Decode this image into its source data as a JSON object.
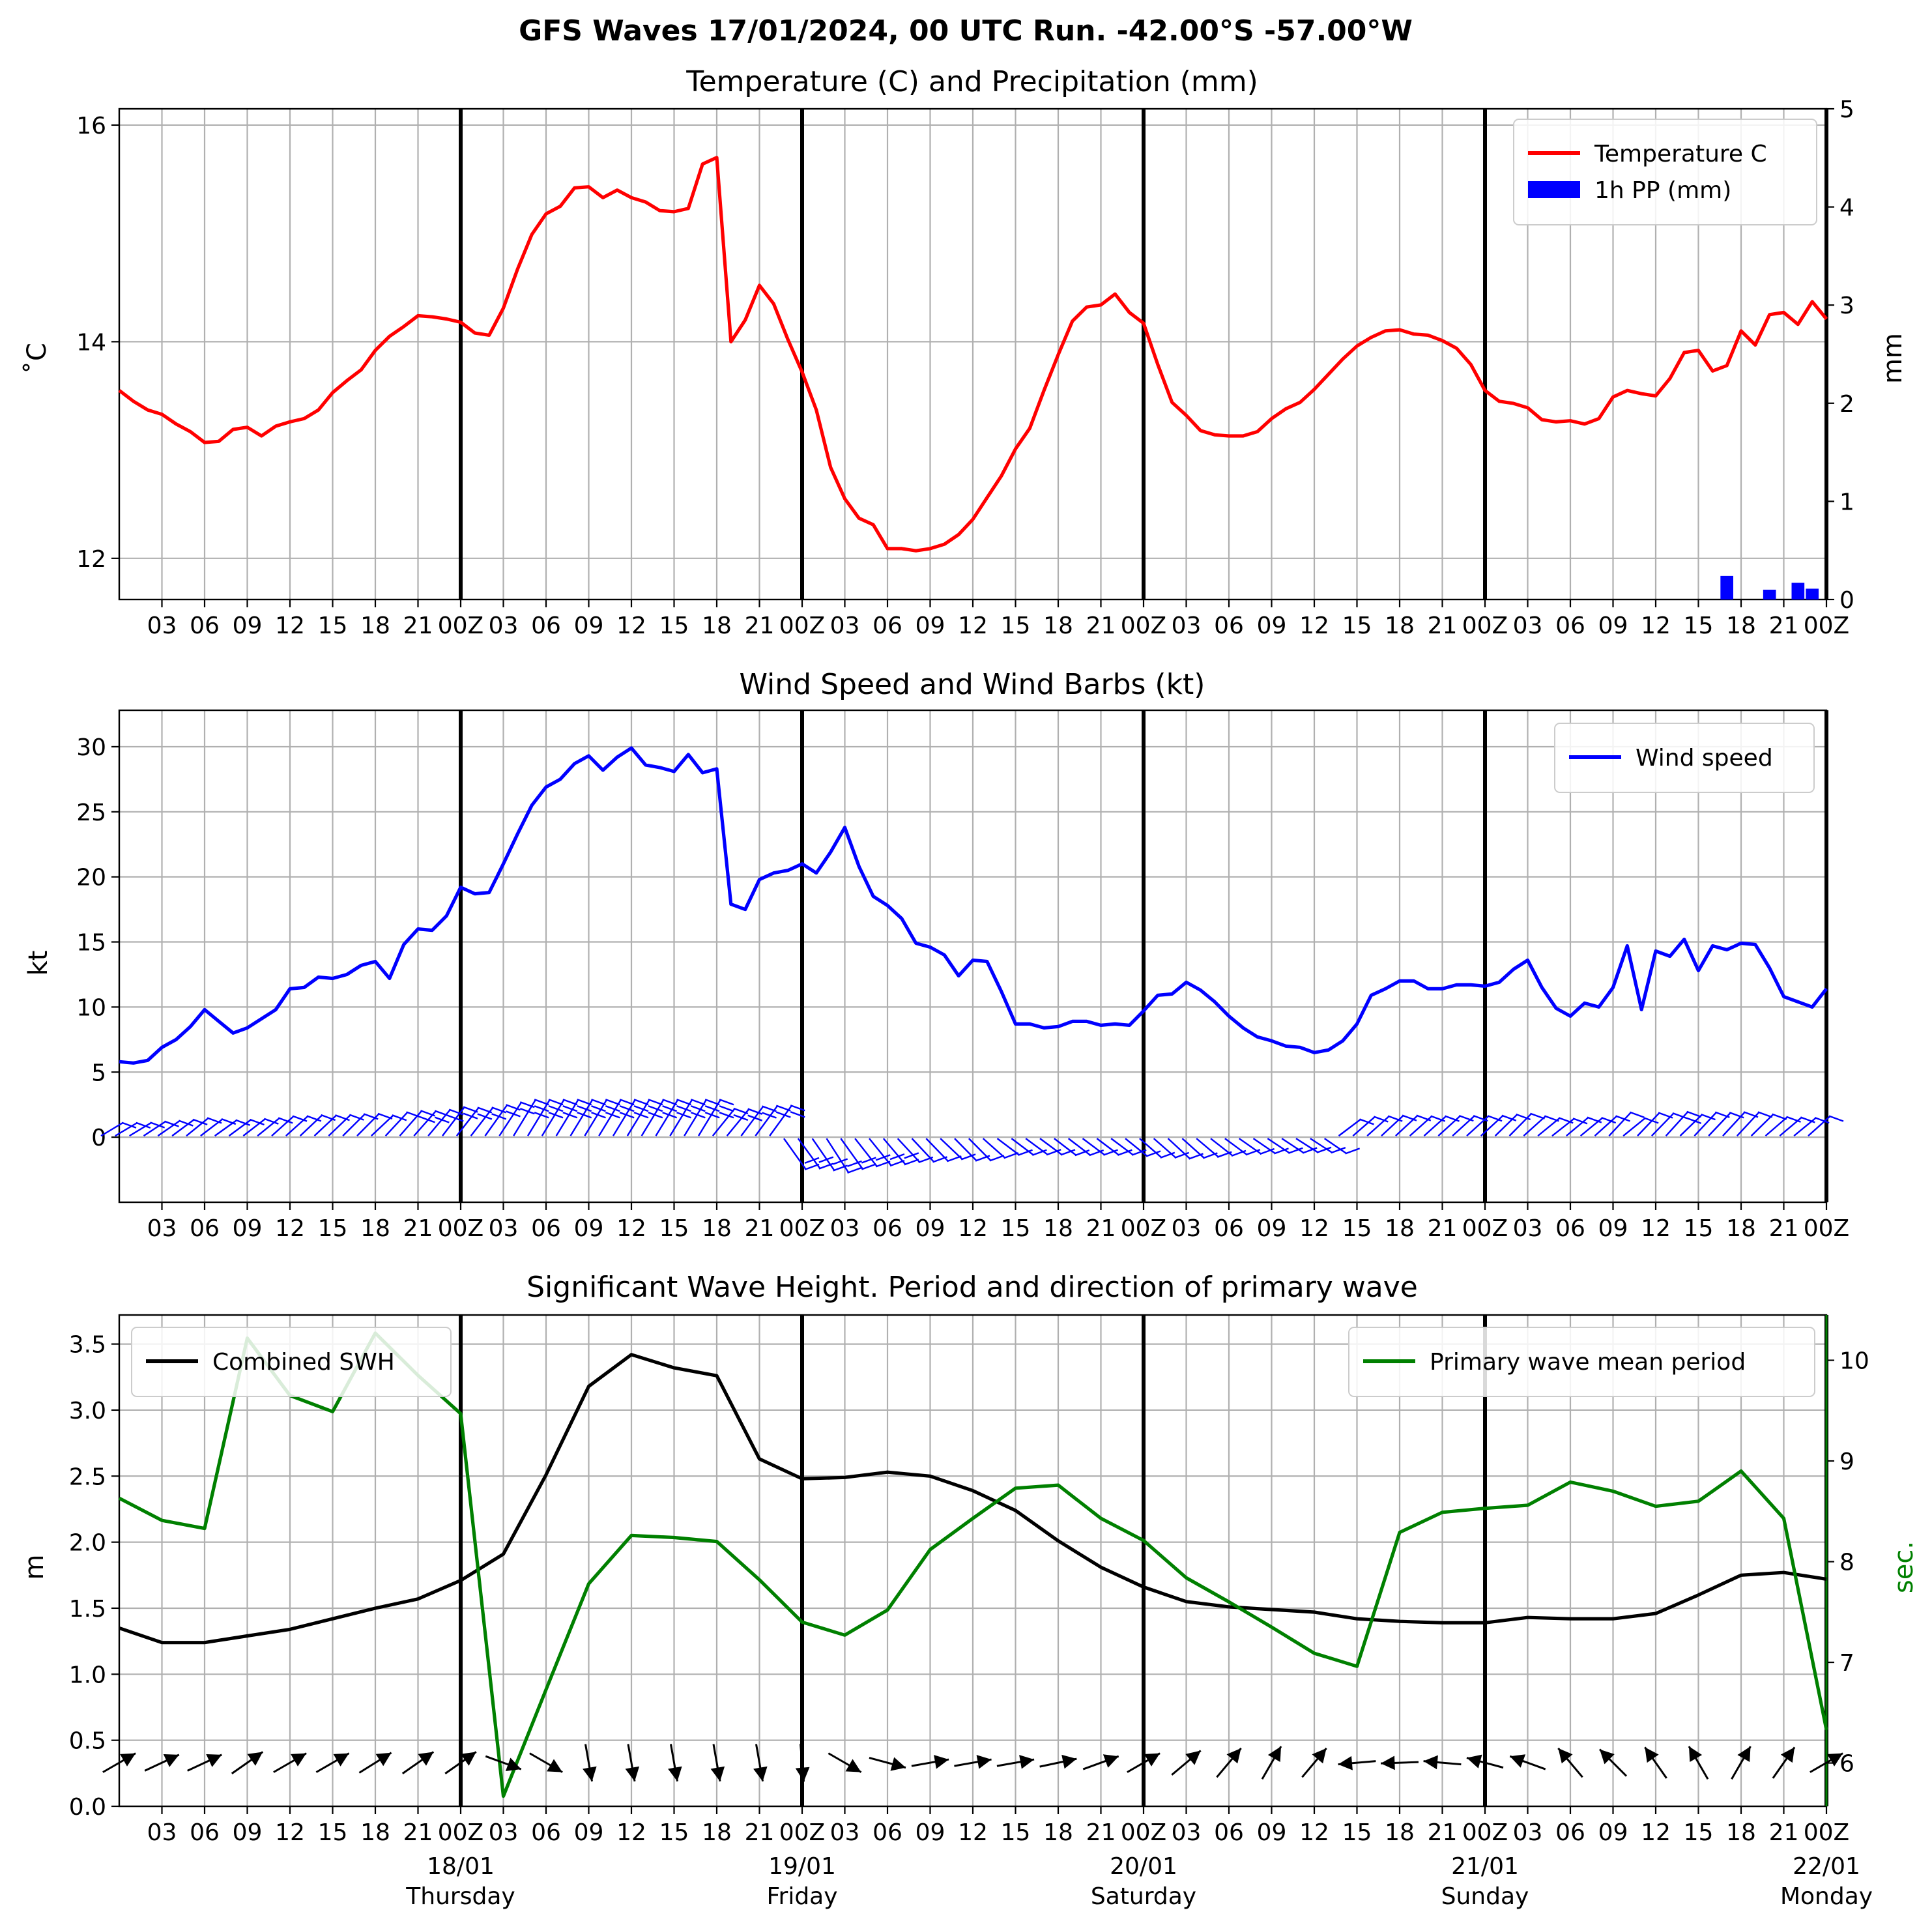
{
  "figure": {
    "title": "GFS Waves 17/01/2024, 00 UTC Run. -42.00°S -57.00°W"
  },
  "colors": {
    "temperature": "#ff0000",
    "precip": "#0000ff",
    "wind": "#0000ff",
    "swh": "#000000",
    "period": "#008000",
    "grid": "#b0b0b0"
  },
  "x_ticks": {
    "labels": [
      "03",
      "06",
      "09",
      "12",
      "15",
      "18",
      "21",
      "00Z",
      "03",
      "06",
      "09",
      "12",
      "15",
      "18",
      "21",
      "00Z",
      "03",
      "06",
      "09",
      "12",
      "15",
      "18",
      "21",
      "00Z",
      "03",
      "06",
      "09",
      "12",
      "15",
      "18",
      "21",
      "00Z",
      "03",
      "06",
      "09",
      "12",
      "15",
      "18",
      "21",
      "00Z"
    ],
    "hours": [
      3,
      6,
      9,
      12,
      15,
      18,
      21,
      24,
      27,
      30,
      33,
      36,
      39,
      42,
      45,
      48,
      51,
      54,
      57,
      60,
      63,
      66,
      69,
      72,
      75,
      78,
      81,
      84,
      87,
      90,
      93,
      96,
      99,
      102,
      105,
      108,
      111,
      114,
      117,
      120
    ],
    "day_hours": [
      24,
      48,
      72,
      96,
      120
    ],
    "day_dates": [
      "18/01",
      "19/01",
      "20/01",
      "21/01",
      "22/01"
    ],
    "day_names": [
      "Thursday",
      "Friday",
      "Saturday",
      "Sunday",
      "Monday"
    ]
  },
  "chart_data": [
    {
      "type": "line",
      "title": "Temperature (C) and Precipitation (mm)",
      "ylabel": "$^\\circ$C",
      "ylabel_display": "˚C",
      "y2label": "mm",
      "ylim": [
        11.62,
        16.15
      ],
      "y2lim": [
        0,
        5
      ],
      "yticks": [
        12,
        14,
        16
      ],
      "y2ticks": [
        0,
        1,
        2,
        3,
        4,
        5
      ],
      "xlim": [
        0,
        120
      ],
      "legend": "top-right",
      "legend_labels": [
        "Temperature C",
        "1h PP (mm)"
      ],
      "series": [
        {
          "name": "Temperature C",
          "x": [
            0,
            1,
            2,
            3,
            4,
            5,
            6,
            7,
            8,
            9,
            10,
            11,
            12,
            13,
            14,
            15,
            16,
            17,
            18,
            19,
            20,
            21,
            22,
            23,
            24,
            25,
            26,
            27,
            28,
            29,
            30,
            31,
            32,
            33,
            34,
            35,
            36,
            37,
            38,
            39,
            40,
            41,
            42,
            43,
            44,
            45,
            46,
            47,
            48,
            49,
            50,
            51,
            52,
            53,
            54,
            55,
            56,
            57,
            58,
            59,
            60,
            61,
            62,
            63,
            64,
            65,
            66,
            67,
            68,
            69,
            70,
            71,
            72,
            73,
            74,
            75,
            76,
            77,
            78,
            79,
            80,
            81,
            82,
            83,
            84,
            85,
            86,
            87,
            88,
            89,
            90,
            91,
            92,
            93,
            94,
            95,
            96,
            97,
            98,
            99,
            100,
            101,
            102,
            103,
            104,
            105,
            106,
            107,
            108,
            109,
            110,
            111,
            112,
            113,
            114,
            115,
            116,
            117,
            118,
            119,
            120
          ],
          "values": [
            13.55,
            13.45,
            13.37,
            13.33,
            13.24,
            13.17,
            13.07,
            13.08,
            13.19,
            13.21,
            13.13,
            13.22,
            13.26,
            13.29,
            13.37,
            13.53,
            13.64,
            13.74,
            13.92,
            14.05,
            14.14,
            14.24,
            14.23,
            14.21,
            14.18,
            14.08,
            14.06,
            14.31,
            14.67,
            14.99,
            15.18,
            15.25,
            15.42,
            15.43,
            15.33,
            15.4,
            15.33,
            15.29,
            15.21,
            15.2,
            15.23,
            15.64,
            15.7,
            14.0,
            14.2,
            14.52,
            14.35,
            14.02,
            13.72,
            13.37,
            12.84,
            12.55,
            12.37,
            12.31,
            12.09,
            12.09,
            12.07,
            12.09,
            12.13,
            12.22,
            12.36,
            12.56,
            12.76,
            13.01,
            13.2,
            13.55,
            13.88,
            14.19,
            14.32,
            14.34,
            14.44,
            14.27,
            14.17,
            13.79,
            13.44,
            13.32,
            13.18,
            13.14,
            13.13,
            13.13,
            13.17,
            13.29,
            13.38,
            13.44,
            13.56,
            13.7,
            13.84,
            13.96,
            14.04,
            14.1,
            14.11,
            14.07,
            14.06,
            14.01,
            13.94,
            13.79,
            13.55,
            13.45,
            13.43,
            13.39,
            13.28,
            13.26,
            13.27,
            13.24,
            13.29,
            13.49,
            13.55,
            13.52,
            13.5,
            13.66,
            13.9,
            13.92,
            13.73,
            13.78,
            14.1,
            13.97,
            14.25,
            14.27,
            14.16,
            14.37,
            14.21
          ]
        },
        {
          "name": "1h PP (mm)",
          "type": "bar",
          "x": [
            113,
            116,
            118,
            119
          ],
          "values": [
            0.24,
            0.1,
            0.17,
            0.11
          ]
        }
      ]
    },
    {
      "type": "line",
      "title": "Wind Speed and Wind Barbs (kt)",
      "ylabel": "kt",
      "ylim": [
        -5,
        32.8
      ],
      "yticks": [
        0,
        5,
        10,
        15,
        20,
        25,
        30
      ],
      "xlim": [
        0,
        120
      ],
      "legend": "top-right",
      "legend_labels": [
        "Wind speed"
      ],
      "series": [
        {
          "name": "Wind speed",
          "x": [
            0,
            1,
            2,
            3,
            4,
            5,
            6,
            7,
            8,
            9,
            10,
            11,
            12,
            13,
            14,
            15,
            16,
            17,
            18,
            19,
            20,
            21,
            22,
            23,
            24,
            25,
            26,
            27,
            28,
            29,
            30,
            31,
            32,
            33,
            34,
            35,
            36,
            37,
            38,
            39,
            40,
            41,
            42,
            43,
            44,
            45,
            46,
            47,
            48,
            49,
            50,
            51,
            52,
            53,
            54,
            55,
            56,
            57,
            58,
            59,
            60,
            61,
            62,
            63,
            64,
            65,
            66,
            67,
            68,
            69,
            70,
            71,
            72,
            73,
            74,
            75,
            76,
            77,
            78,
            79,
            80,
            81,
            82,
            83,
            84,
            85,
            86,
            87,
            88,
            89,
            90,
            91,
            92,
            93,
            94,
            95,
            96,
            97,
            98,
            99,
            100,
            101,
            102,
            103,
            104,
            105,
            106,
            107,
            108,
            109,
            110,
            111,
            112,
            113,
            114,
            115,
            116,
            117,
            118,
            119,
            120
          ],
          "values": [
            5.8,
            5.7,
            5.9,
            6.9,
            7.5,
            8.5,
            9.8,
            8.9,
            8.0,
            8.4,
            9.1,
            9.8,
            11.4,
            11.5,
            12.3,
            12.2,
            12.5,
            13.2,
            13.5,
            12.2,
            14.8,
            16.0,
            15.9,
            17.0,
            19.2,
            18.7,
            18.8,
            21.0,
            23.3,
            25.5,
            26.9,
            27.5,
            28.7,
            29.3,
            28.2,
            29.2,
            29.9,
            28.6,
            28.4,
            28.1,
            29.4,
            28.0,
            28.3,
            17.9,
            17.5,
            19.8,
            20.3,
            20.5,
            21.0,
            20.3,
            21.9,
            23.8,
            20.8,
            18.5,
            17.8,
            16.8,
            14.9,
            14.6,
            14.0,
            12.4,
            13.6,
            13.5,
            11.2,
            8.7,
            8.7,
            8.4,
            8.5,
            8.9,
            8.9,
            8.6,
            8.7,
            8.6,
            9.7,
            10.9,
            11.0,
            11.9,
            11.3,
            10.4,
            9.3,
            8.4,
            7.7,
            7.4,
            7.0,
            6.9,
            6.5,
            6.7,
            7.4,
            8.7,
            10.9,
            11.4,
            12.0,
            12.0,
            11.4,
            11.4,
            11.7,
            11.7,
            11.6,
            11.9,
            12.9,
            13.6,
            11.5,
            9.9,
            9.3,
            10.3,
            10.0,
            11.5,
            14.7,
            9.8,
            14.3,
            13.9,
            15.2,
            12.8,
            14.7,
            14.4,
            14.9,
            14.8,
            13.0,
            10.8,
            10.4,
            10.0,
            11.4
          ]
        }
      ]
    },
    {
      "type": "line",
      "title": "Significant Wave Height. Period and direction of primary wave",
      "ylabel": "m",
      "y2label": "sec.",
      "ylim": [
        0,
        3.72
      ],
      "y2lim": [
        5.57,
        10.45
      ],
      "yticks": [
        0.0,
        0.5,
        1.0,
        1.5,
        2.0,
        2.5,
        3.0,
        3.5
      ],
      "y2ticks": [
        6,
        7,
        8,
        9,
        10
      ],
      "xlim": [
        0,
        120
      ],
      "legend_left": "top-left",
      "legend_right": "top-right",
      "legend_labels": [
        "Combined SWH",
        "Primary wave mean period"
      ],
      "series": [
        {
          "name": "Combined SWH",
          "x": [
            0,
            3,
            6,
            9,
            12,
            15,
            18,
            21,
            24,
            27,
            30,
            33,
            36,
            39,
            42,
            45,
            48,
            51,
            54,
            57,
            60,
            63,
            66,
            69,
            72,
            75,
            78,
            81,
            84,
            87,
            90,
            93,
            96,
            99,
            102,
            105,
            108,
            111,
            114,
            117,
            120
          ],
          "values": [
            1.35,
            1.24,
            1.24,
            1.29,
            1.34,
            1.42,
            1.5,
            1.57,
            1.71,
            1.91,
            2.51,
            3.18,
            3.42,
            3.32,
            3.26,
            2.63,
            2.48,
            2.49,
            2.53,
            2.5,
            2.39,
            2.24,
            2.01,
            1.81,
            1.66,
            1.55,
            1.51,
            1.49,
            1.47,
            1.42,
            1.4,
            1.39,
            1.39,
            1.43,
            1.42,
            1.42,
            1.46,
            1.6,
            1.75,
            1.77,
            1.72
          ]
        },
        {
          "name": "Primary wave mean period",
          "x": [
            0,
            3,
            6,
            9,
            12,
            15,
            18,
            21,
            24,
            27,
            30,
            33,
            36,
            39,
            42,
            45,
            48,
            51,
            54,
            57,
            60,
            63,
            66,
            69,
            72,
            75,
            78,
            81,
            84,
            87,
            90,
            93,
            96,
            99,
            102,
            105,
            108,
            111,
            114,
            117,
            120
          ],
          "values": [
            8.63,
            8.41,
            8.33,
            10.22,
            9.65,
            9.49,
            10.27,
            9.85,
            9.47,
            5.67,
            6.73,
            7.78,
            8.26,
            8.24,
            8.2,
            7.82,
            7.4,
            7.27,
            7.52,
            8.12,
            8.43,
            8.73,
            8.76,
            8.43,
            8.21,
            7.84,
            7.6,
            7.35,
            7.09,
            6.96,
            8.29,
            8.49,
            8.53,
            8.56,
            8.79,
            8.7,
            8.55,
            8.6,
            8.9,
            8.43,
            6.33
          ]
        },
        {
          "name": "Primary wave direction",
          "type": "arrows",
          "x": [
            0,
            3,
            6,
            9,
            12,
            15,
            18,
            21,
            24,
            27,
            30,
            33,
            36,
            39,
            42,
            45,
            48,
            51,
            54,
            57,
            60,
            63,
            66,
            69,
            72,
            75,
            78,
            81,
            84,
            87,
            90,
            93,
            96,
            99,
            102,
            105,
            108,
            111,
            114,
            117,
            120
          ],
          "angles_deg": [
            30,
            25,
            25,
            35,
            30,
            30,
            32,
            35,
            35,
            -20,
            -30,
            -80,
            -80,
            -80,
            -80,
            -80,
            -85,
            -30,
            -15,
            10,
            10,
            10,
            12,
            20,
            30,
            40,
            50,
            60,
            50,
            -175,
            -178,
            175,
            165,
            160,
            130,
            135,
            125,
            120,
            60,
            55,
            30
          ]
        }
      ]
    }
  ]
}
